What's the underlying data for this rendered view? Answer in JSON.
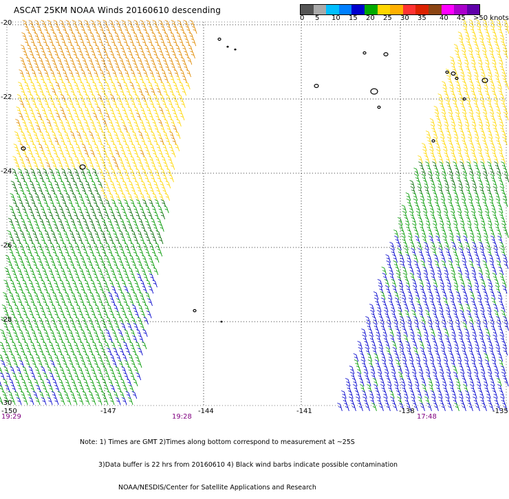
{
  "title": "ASCAT 25KM NOAA Winds 20160610 descending",
  "legend": {
    "colors": [
      "#555555",
      "#aaaaaa",
      "#00bfff",
      "#0080ff",
      "#0000cd",
      "#00aa00",
      "#ffd700",
      "#ffb000",
      "#ff3333",
      "#dd2200",
      "#8b4513",
      "#ff00ff",
      "#aa00cc",
      "#6000aa"
    ],
    "labels": [
      "0",
      "5",
      "10",
      "15",
      "20",
      "25",
      "30",
      "35",
      "40",
      "45",
      ">50 knots"
    ]
  },
  "map": {
    "lat_labels": [
      "-20",
      "-22",
      "-24",
      "-26",
      "-28",
      "-30"
    ],
    "lon_labels": [
      "-150",
      "-147",
      "-144",
      "-141",
      "-138",
      "-135"
    ],
    "time_labels": [
      "19:29",
      "19:28",
      "17:48"
    ],
    "swath_colors": {
      "green": "#009900",
      "dark_green": "#006600",
      "yellow": "#ffd700",
      "orange": "#e08a00",
      "blue": "#0000cc"
    }
  },
  "notes": [
    "Note: 1) Times are GMT 2)Times along bottom correspond to measurement at ~25S",
    "3)Data buffer is 22 hrs from 20160610 4) Black wind barbs indicate possible contamination",
    "NOAA/NESDIS/Center for Satellite Applications and Research"
  ]
}
